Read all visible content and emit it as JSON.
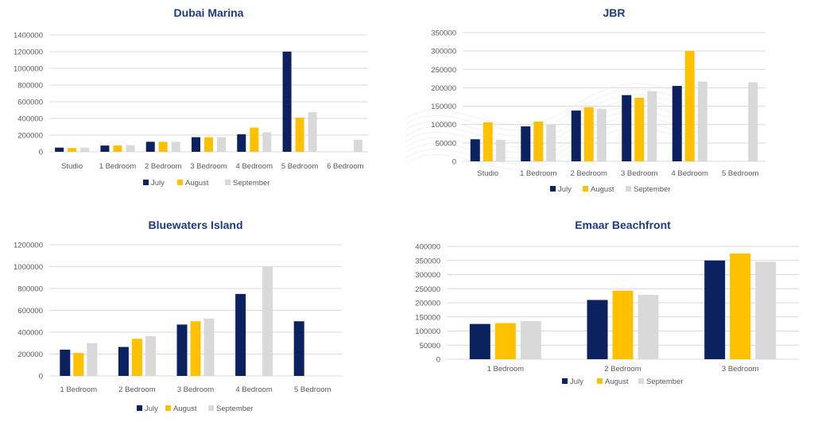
{
  "colors": {
    "July": "#0b2160",
    "August": "#ffc000",
    "September": "#d9d9d9",
    "title": "#1f3b80",
    "grid": "#d9d9d9",
    "tick": "#595959"
  },
  "chart_data": [
    {
      "type": "bar",
      "title": "Dubai Marina",
      "categories": [
        "Studio",
        "1 Bedroom",
        "2 Bedroom",
        "3 Bedroom",
        "4 Bedroom",
        "5 Bedroom",
        "6 Bedroom"
      ],
      "series": [
        {
          "name": "July",
          "values": [
            50000,
            75000,
            120000,
            175000,
            210000,
            1200000,
            null
          ]
        },
        {
          "name": "August",
          "values": [
            45000,
            75000,
            120000,
            175000,
            290000,
            410000,
            null
          ]
        },
        {
          "name": "September",
          "values": [
            50000,
            80000,
            120000,
            175000,
            235000,
            475000,
            145000
          ]
        }
      ],
      "yticks": [
        "0",
        "200000",
        "400000",
        "600000",
        "800000",
        "1000000",
        "1200000",
        "1400000"
      ],
      "ylim": [
        0,
        1400000
      ],
      "grid": true,
      "legend": "bottom"
    },
    {
      "type": "bar",
      "title": "JBR",
      "categories": [
        "Studio",
        "1 Bedroom",
        "2 Bedroom",
        "3 Bedroom",
        "4 Bedroom",
        "5 Bedroom"
      ],
      "series": [
        {
          "name": "July",
          "values": [
            60000,
            95000,
            138000,
            180000,
            205000,
            null
          ]
        },
        {
          "name": "August",
          "values": [
            106000,
            108000,
            147000,
            173000,
            300000,
            null
          ]
        },
        {
          "name": "September",
          "values": [
            58000,
            100000,
            142000,
            190000,
            217000,
            215000
          ]
        }
      ],
      "yticks": [
        "0",
        "50000",
        "100000",
        "150000",
        "200000",
        "250000",
        "300000",
        "350000"
      ],
      "ylim": [
        0,
        350000
      ],
      "grid": true,
      "legend": "bottom"
    },
    {
      "type": "bar",
      "title": "Bluewaters Island",
      "categories": [
        "1 Bedroom",
        "2 Bedroom",
        "3 Bedroom",
        "4 Bedroom",
        "5 Bedroom"
      ],
      "series": [
        {
          "name": "July",
          "values": [
            240000,
            265000,
            470000,
            750000,
            500000
          ]
        },
        {
          "name": "August",
          "values": [
            210000,
            340000,
            500000,
            null,
            null
          ]
        },
        {
          "name": "September",
          "values": [
            300000,
            365000,
            525000,
            1000000,
            null
          ]
        }
      ],
      "yticks": [
        "0",
        "200000",
        "400000",
        "600000",
        "800000",
        "1000000",
        "1200000"
      ],
      "ylim": [
        0,
        1200000
      ],
      "grid": true,
      "legend": "bottom"
    },
    {
      "type": "bar",
      "title": "Emaar Beachfront",
      "categories": [
        "1 Bedroom",
        "2 Bedroom",
        "3 Bedroom"
      ],
      "series": [
        {
          "name": "July",
          "values": [
            125000,
            210000,
            350000
          ]
        },
        {
          "name": "August",
          "values": [
            128000,
            243000,
            375000
          ]
        },
        {
          "name": "September",
          "values": [
            135000,
            228000,
            345000
          ]
        }
      ],
      "yticks": [
        "0",
        "50000",
        "100000",
        "150000",
        "200000",
        "250000",
        "300000",
        "350000",
        "400000"
      ],
      "ylim": [
        0,
        400000
      ],
      "grid": true,
      "legend": "bottom"
    }
  ]
}
